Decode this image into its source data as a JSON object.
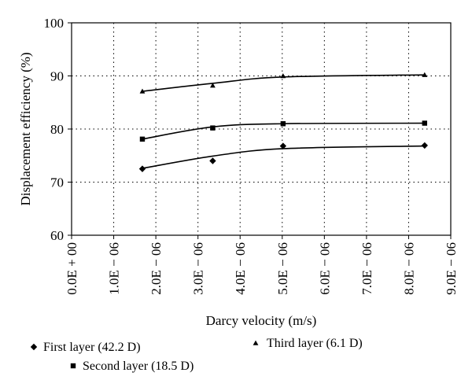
{
  "chart_data": {
    "type": "scatter",
    "xlabel": "Darcy velocity (m/s)",
    "ylabel": "Displacement efficiency (%)",
    "xlim": [
      0,
      9e-06
    ],
    "ylim": [
      60,
      100
    ],
    "x_ticks": [
      0,
      1e-06,
      2e-06,
      3e-06,
      4e-06,
      5e-06,
      6e-06,
      7e-06,
      8e-06,
      9e-06
    ],
    "x_tick_labels": [
      "0.0E + 00",
      "1.0E − 06",
      "2.0E − 06",
      "3.0E − 06",
      "4.0E − 06",
      "5.0E − 06",
      "6.0E − 06",
      "7.0E − 06",
      "8.0E − 06",
      "9.0E − 06"
    ],
    "y_ticks": [
      60,
      70,
      80,
      90,
      100
    ],
    "y_tick_labels": [
      "60",
      "70",
      "80",
      "90",
      "100"
    ],
    "grid": "dotted",
    "legend_position": "bottom",
    "series": [
      {
        "name": "First layer (42.2 D)",
        "marker": "diamond",
        "x": [
          1.68e-06,
          3.35e-06,
          5.02e-06,
          8.38e-06
        ],
        "y": [
          72.5,
          74.0,
          76.8,
          76.9
        ],
        "trend_y": [
          72.6,
          74.9,
          76.3,
          76.8
        ]
      },
      {
        "name": "Second layer (18.5 D)",
        "marker": "square",
        "x": [
          1.68e-06,
          3.35e-06,
          5.02e-06,
          8.38e-06
        ],
        "y": [
          78.1,
          80.2,
          81.0,
          81.1
        ],
        "trend_y": [
          78.1,
          80.4,
          81.0,
          81.1
        ]
      },
      {
        "name": "Third layer (6.1 D)",
        "marker": "triangle",
        "x": [
          1.68e-06,
          3.35e-06,
          5.02e-06,
          8.38e-06
        ],
        "y": [
          87.1,
          88.2,
          90.0,
          90.2
        ],
        "trend_y": [
          87.1,
          88.6,
          89.8,
          90.2
        ]
      }
    ]
  },
  "colors": {
    "ink": "#000000",
    "grid": "#000000",
    "background": "#ffffff"
  }
}
